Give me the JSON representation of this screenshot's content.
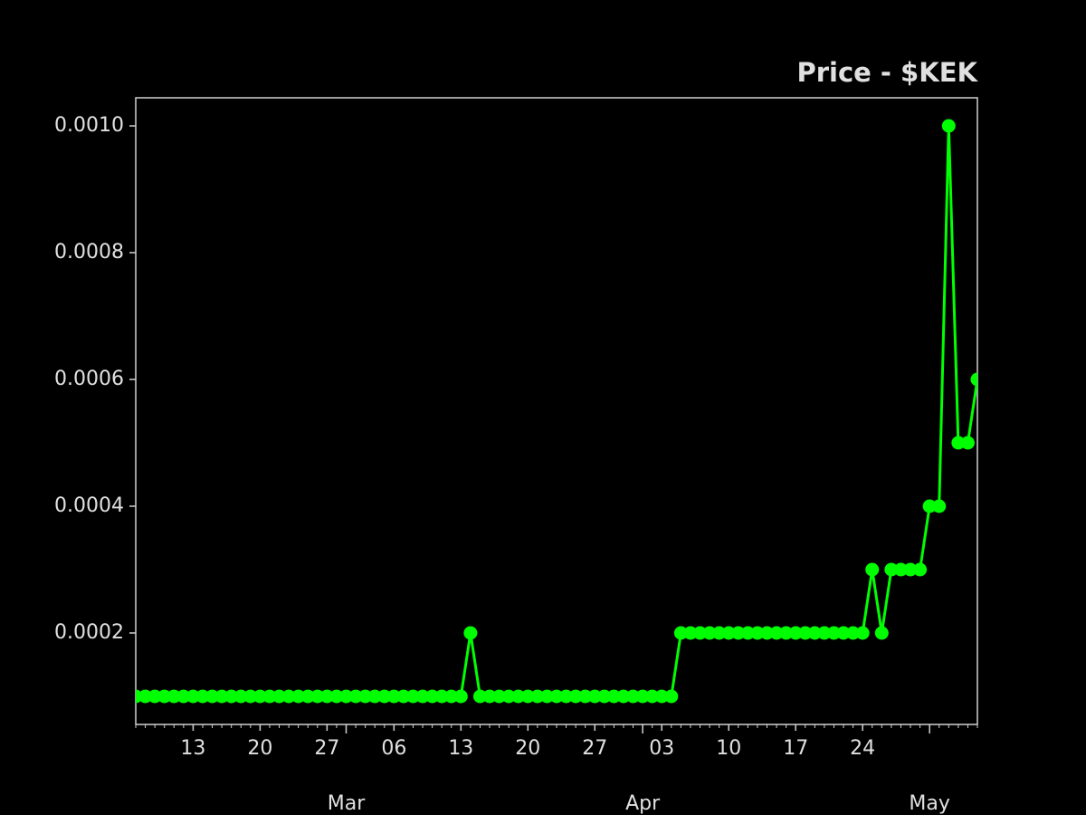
{
  "chart_data": {
    "type": "line",
    "title": "Price - $KEK",
    "x": [
      "02-07",
      "02-08",
      "02-09",
      "02-10",
      "02-11",
      "02-12",
      "02-13",
      "02-14",
      "02-15",
      "02-16",
      "02-17",
      "02-18",
      "02-19",
      "02-20",
      "02-21",
      "02-22",
      "02-23",
      "02-24",
      "02-25",
      "02-26",
      "02-27",
      "02-28",
      "03-01",
      "03-02",
      "03-03",
      "03-04",
      "03-05",
      "03-06",
      "03-07",
      "03-08",
      "03-09",
      "03-10",
      "03-11",
      "03-12",
      "03-13",
      "03-14",
      "03-15",
      "03-16",
      "03-17",
      "03-18",
      "03-19",
      "03-20",
      "03-21",
      "03-22",
      "03-23",
      "03-24",
      "03-25",
      "03-26",
      "03-27",
      "03-28",
      "03-29",
      "03-30",
      "03-31",
      "04-01",
      "04-02",
      "04-03",
      "04-04",
      "04-05",
      "04-06",
      "04-07",
      "04-08",
      "04-09",
      "04-10",
      "04-11",
      "04-12",
      "04-13",
      "04-14",
      "04-15",
      "04-16",
      "04-17",
      "04-18",
      "04-19",
      "04-20",
      "04-21",
      "04-22",
      "04-23",
      "04-24",
      "04-25",
      "04-26",
      "04-27",
      "04-28",
      "04-29",
      "04-30",
      "05-01",
      "05-02",
      "05-03",
      "05-04",
      "05-05",
      "05-06"
    ],
    "series": [
      {
        "name": "$KEK",
        "color": "#00ff00",
        "values": [
          0.0001,
          0.0001,
          0.0001,
          0.0001,
          0.0001,
          0.0001,
          0.0001,
          0.0001,
          0.0001,
          0.0001,
          0.0001,
          0.0001,
          0.0001,
          0.0001,
          0.0001,
          0.0001,
          0.0001,
          0.0001,
          0.0001,
          0.0001,
          0.0001,
          0.0001,
          0.0001,
          0.0001,
          0.0001,
          0.0001,
          0.0001,
          0.0001,
          0.0001,
          0.0001,
          0.0001,
          0.0001,
          0.0001,
          0.0001,
          0.0001,
          0.0002,
          0.0001,
          0.0001,
          0.0001,
          0.0001,
          0.0001,
          0.0001,
          0.0001,
          0.0001,
          0.0001,
          0.0001,
          0.0001,
          0.0001,
          0.0001,
          0.0001,
          0.0001,
          0.0001,
          0.0001,
          0.0001,
          0.0001,
          0.0001,
          0.0001,
          0.0002,
          0.0002,
          0.0002,
          0.0002,
          0.0002,
          0.0002,
          0.0002,
          0.0002,
          0.0002,
          0.0002,
          0.0002,
          0.0002,
          0.0002,
          0.0002,
          0.0002,
          0.0002,
          0.0002,
          0.0002,
          0.0002,
          0.0002,
          0.0003,
          0.0002,
          0.0003,
          0.0003,
          0.0003,
          0.0003,
          0.0004,
          0.0004,
          0.001,
          0.0005,
          0.0005,
          0.0006
        ]
      }
    ],
    "xlim": [
      "02-07",
      "05-06"
    ],
    "xticks": [
      {
        "value": "02-13",
        "label": "13"
      },
      {
        "value": "02-20",
        "label": "20"
      },
      {
        "value": "02-27",
        "label": "27"
      },
      {
        "value": "03-06",
        "label": "06"
      },
      {
        "value": "03-13",
        "label": "13"
      },
      {
        "value": "03-20",
        "label": "20"
      },
      {
        "value": "03-27",
        "label": "27"
      },
      {
        "value": "04-03",
        "label": "03"
      },
      {
        "value": "04-10",
        "label": "10"
      },
      {
        "value": "04-17",
        "label": "17"
      },
      {
        "value": "04-24",
        "label": "24"
      }
    ],
    "month_ticks": [
      {
        "value": "03-01",
        "label": "Mar"
      },
      {
        "value": "04-01",
        "label": "Apr"
      },
      {
        "value": "05-01",
        "label": "May"
      }
    ],
    "ylim": [
      5.57e-05,
      0.0010443
    ],
    "yticks": [
      {
        "value": 0.0002,
        "label": "0.0002"
      },
      {
        "value": 0.0004,
        "label": "0.0004"
      },
      {
        "value": 0.0006,
        "label": "0.0006"
      },
      {
        "value": 0.0008,
        "label": "0.0008"
      },
      {
        "value": 0.001,
        "label": "0.0010"
      }
    ]
  }
}
